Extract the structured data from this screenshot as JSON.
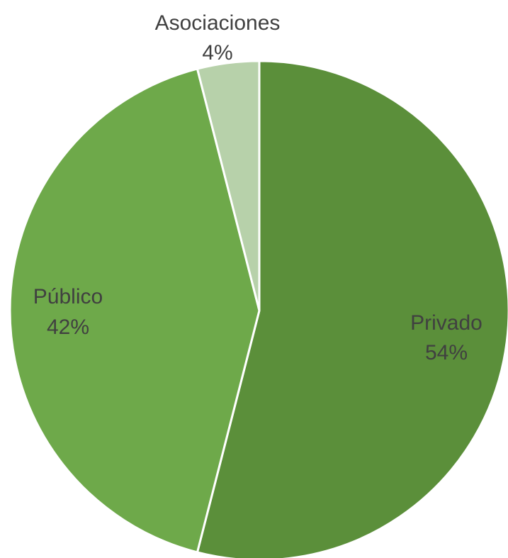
{
  "chart_data": {
    "type": "pie",
    "title": "",
    "slices": [
      {
        "label": "Privado",
        "value": 54,
        "value_label": "54%",
        "color": "#5B8F3A"
      },
      {
        "label": "Público",
        "value": 42,
        "value_label": "42%",
        "color": "#6EA94A"
      },
      {
        "label": "Asociaciones",
        "value": 4,
        "value_label": "4%",
        "color": "#B7D1AA"
      }
    ],
    "start_angle_deg": 0,
    "direction": "clockwise",
    "legend": "none"
  }
}
